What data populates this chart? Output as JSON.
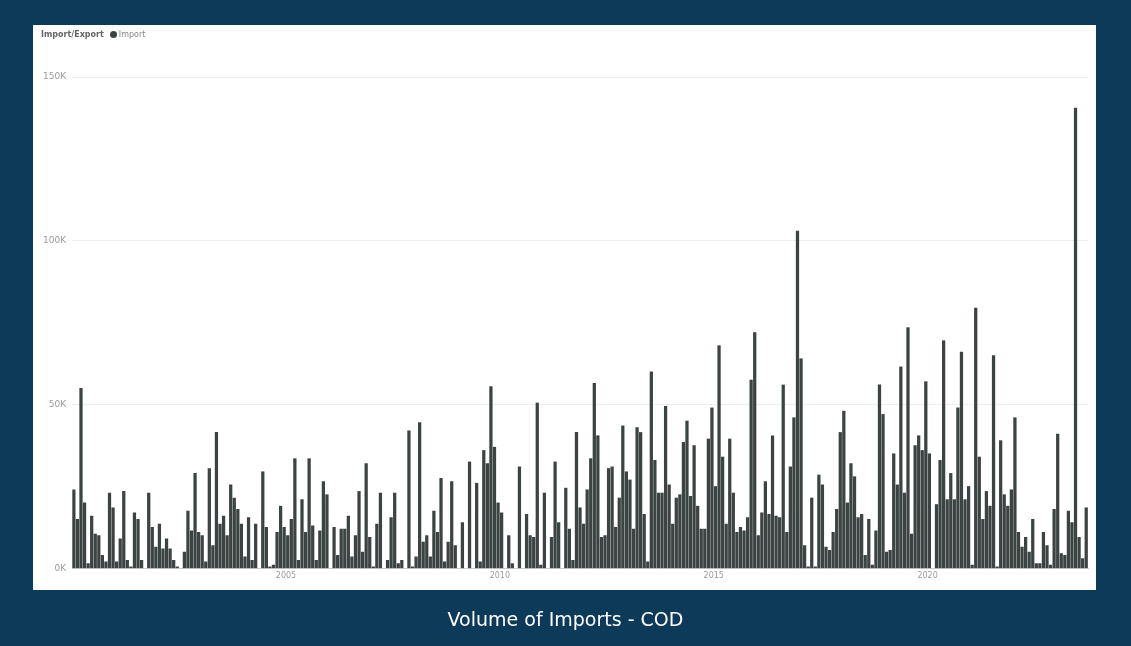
{
  "chart_data": {
    "type": "bar",
    "title": "Volume of Imports - COD",
    "legend_title": "Import/Export",
    "legend": "top left",
    "grid": "y",
    "x": [
      "2000-01",
      "2000-02",
      "2000-03",
      "2000-04",
      "2000-05",
      "2000-06",
      "2000-07",
      "2000-08",
      "2000-09",
      "2000-10",
      "2000-11",
      "2000-12",
      "2001-01",
      "2001-02",
      "2001-03",
      "2001-04",
      "2001-05",
      "2001-06",
      "2001-07",
      "2001-08",
      "2001-09",
      "2001-10",
      "2001-11",
      "2001-12",
      "2002-01",
      "2002-02",
      "2002-03",
      "2002-04",
      "2002-05",
      "2002-06",
      "2002-07",
      "2002-08",
      "2002-09",
      "2002-10",
      "2002-11",
      "2002-12",
      "2003-01",
      "2003-02",
      "2003-03",
      "2003-04",
      "2003-05",
      "2003-06",
      "2003-07",
      "2003-08",
      "2003-09",
      "2003-10",
      "2003-11",
      "2003-12",
      "2004-01",
      "2004-02",
      "2004-03",
      "2004-04",
      "2004-05",
      "2004-06",
      "2004-07",
      "2004-08",
      "2004-09",
      "2004-10",
      "2004-11",
      "2004-12",
      "2005-01",
      "2005-02",
      "2005-03",
      "2005-04",
      "2005-05",
      "2005-06",
      "2005-07",
      "2005-08",
      "2005-09",
      "2005-10",
      "2005-11",
      "2005-12",
      "2006-01",
      "2006-02",
      "2006-03",
      "2006-04",
      "2006-05",
      "2006-06",
      "2006-07",
      "2006-08",
      "2006-09",
      "2006-10",
      "2006-11",
      "2006-12",
      "2007-01",
      "2007-02",
      "2007-03",
      "2007-04",
      "2007-05",
      "2007-06",
      "2007-07",
      "2007-08",
      "2007-09",
      "2007-10",
      "2007-11",
      "2007-12",
      "2008-01",
      "2008-02",
      "2008-03",
      "2008-04",
      "2008-05",
      "2008-06",
      "2008-07",
      "2008-08",
      "2008-09",
      "2008-10",
      "2008-11",
      "2008-12",
      "2009-01",
      "2009-02",
      "2009-03",
      "2009-04",
      "2009-05",
      "2009-06",
      "2009-07",
      "2009-08",
      "2009-09",
      "2009-10",
      "2009-11",
      "2009-12",
      "2010-01",
      "2010-02",
      "2010-03",
      "2010-04",
      "2010-05",
      "2010-06",
      "2010-07",
      "2010-08",
      "2010-09",
      "2010-10",
      "2010-11",
      "2010-12",
      "2011-01",
      "2011-02",
      "2011-03",
      "2011-04",
      "2011-05",
      "2011-06",
      "2011-07",
      "2011-08",
      "2011-09",
      "2011-10",
      "2011-11",
      "2011-12",
      "2012-01",
      "2012-02",
      "2012-03",
      "2012-04",
      "2012-05",
      "2012-06",
      "2012-07",
      "2012-08",
      "2012-09",
      "2012-10",
      "2012-11",
      "2012-12",
      "2013-01",
      "2013-02",
      "2013-03",
      "2013-04",
      "2013-05",
      "2013-06",
      "2013-07",
      "2013-08",
      "2013-09",
      "2013-10",
      "2013-11",
      "2013-12",
      "2014-01",
      "2014-02",
      "2014-03",
      "2014-04",
      "2014-05",
      "2014-06",
      "2014-07",
      "2014-08",
      "2014-09",
      "2014-10",
      "2014-11",
      "2014-12",
      "2015-01",
      "2015-02",
      "2015-03",
      "2015-04",
      "2015-05",
      "2015-06",
      "2015-07",
      "2015-08",
      "2015-09",
      "2015-10",
      "2015-11",
      "2015-12",
      "2016-01",
      "2016-02",
      "2016-03",
      "2016-04",
      "2016-05",
      "2016-06",
      "2016-07",
      "2016-08",
      "2016-09",
      "2016-10",
      "2016-11",
      "2016-12",
      "2017-01",
      "2017-02",
      "2017-03",
      "2017-04",
      "2017-05",
      "2017-06",
      "2017-07",
      "2017-08",
      "2017-09",
      "2017-10",
      "2017-11",
      "2017-12",
      "2018-01",
      "2018-02",
      "2018-03",
      "2018-04",
      "2018-05",
      "2018-06",
      "2018-07",
      "2018-08",
      "2018-09",
      "2018-10",
      "2018-11",
      "2018-12",
      "2019-01",
      "2019-02",
      "2019-03",
      "2019-04",
      "2019-05",
      "2019-06",
      "2019-07",
      "2019-08",
      "2019-09",
      "2019-10",
      "2019-11",
      "2019-12",
      "2020-01",
      "2020-02",
      "2020-03",
      "2020-04",
      "2020-05",
      "2020-06",
      "2020-07",
      "2020-08",
      "2020-09",
      "2020-10",
      "2020-11",
      "2020-12",
      "2021-01",
      "2021-02",
      "2021-03",
      "2021-04",
      "2021-05",
      "2021-06",
      "2021-07",
      "2021-08",
      "2021-09",
      "2021-10",
      "2021-11",
      "2021-12",
      "2022-01",
      "2022-02",
      "2022-03",
      "2022-04",
      "2022-05",
      "2022-06",
      "2022-07",
      "2022-08",
      "2022-09",
      "2022-10",
      "2022-11",
      "2022-12",
      "2023-01",
      "2023-02",
      "2023-03",
      "2023-04",
      "2023-05",
      "2023-06",
      "2023-07",
      "2023-08",
      "2023-09"
    ],
    "series": [
      {
        "name": "Import",
        "color": "#3b4442",
        "values": [
          24000,
          15000,
          55000,
          20000,
          1500,
          16000,
          10500,
          10000,
          4000,
          2000,
          23000,
          18500,
          2000,
          9000,
          23500,
          2500,
          500,
          17000,
          15000,
          2500,
          null,
          23000,
          12500,
          6500,
          13500,
          6000,
          9000,
          6000,
          2500,
          500,
          null,
          5000,
          17500,
          11500,
          29000,
          11000,
          10000,
          2000,
          30500,
          7000,
          41500,
          13500,
          16000,
          10000,
          25500,
          21500,
          18000,
          13500,
          3500,
          15500,
          2500,
          13500,
          null,
          29500,
          12500,
          500,
          1000,
          11000,
          19000,
          12500,
          10000,
          15000,
          33500,
          2500,
          21000,
          11000,
          33500,
          13000,
          2500,
          11500,
          26500,
          22500,
          null,
          12500,
          4000,
          12000,
          12000,
          16000,
          3500,
          10000,
          23500,
          5000,
          32000,
          9500,
          500,
          13500,
          23000,
          null,
          2500,
          15500,
          23000,
          1500,
          2500,
          null,
          42000,
          500,
          3500,
          44500,
          8000,
          10000,
          3500,
          17500,
          11000,
          27500,
          2000,
          8000,
          26500,
          7000,
          null,
          14000,
          null,
          32500,
          null,
          26000,
          2000,
          36000,
          32000,
          55500,
          37000,
          20000,
          17000,
          null,
          10000,
          1500,
          null,
          31000,
          null,
          16500,
          10000,
          9500,
          50500,
          1000,
          23000,
          null,
          9500,
          32500,
          14000,
          null,
          24500,
          12000,
          2500,
          41500,
          18500,
          13500,
          24000,
          33500,
          56500,
          40500,
          9500,
          10000,
          30500,
          31000,
          12500,
          21500,
          43500,
          29500,
          27000,
          12000,
          43000,
          41500,
          16500,
          2000,
          60000,
          33000,
          23000,
          23000,
          49500,
          25500,
          13500,
          21500,
          22500,
          38500,
          45000,
          22000,
          37500,
          19000,
          12000,
          12000,
          39500,
          49000,
          25000,
          68000,
          34000,
          13500,
          39500,
          23000,
          11000,
          12500,
          11500,
          15500,
          57500,
          72000,
          10000,
          17000,
          26500,
          16500,
          40500,
          16000,
          15500,
          56000,
          11000,
          31000,
          46000,
          103000,
          64000,
          7000,
          500,
          21500,
          500,
          28500,
          25500,
          6500,
          5500,
          11000,
          18000,
          41500,
          48000,
          20000,
          32000,
          28000,
          15500,
          16500,
          4000,
          15000,
          1000,
          11500,
          56000,
          47000,
          5000,
          5500,
          35000,
          25500,
          61500,
          23000,
          73500,
          10500,
          37500,
          40500,
          36000,
          57000,
          35000,
          null,
          19500,
          33000,
          69500,
          21000,
          29000,
          21000,
          49000,
          66000,
          21000,
          25000,
          1000,
          79500,
          34000,
          15000,
          23500,
          19000,
          65000,
          500,
          39000,
          22500,
          19000,
          24000,
          46000,
          11000,
          6500,
          9500,
          5000,
          15000,
          1500,
          1500,
          11000,
          7000,
          1000,
          18000,
          41000,
          4500,
          4000,
          17500,
          14000,
          140500,
          9500,
          3000,
          18500
        ]
      }
    ],
    "xlim": [
      "2000-01-01",
      "2023-10-01"
    ],
    "xticks": [
      "2005",
      "2010",
      "2015",
      "2020"
    ],
    "ylim": [
      0,
      150000
    ],
    "yticks": [
      {
        "value": 0,
        "label": "0K"
      },
      {
        "value": 50000,
        "label": "50K"
      },
      {
        "value": 100000,
        "label": "100K"
      },
      {
        "value": 150000,
        "label": "150K"
      }
    ]
  }
}
